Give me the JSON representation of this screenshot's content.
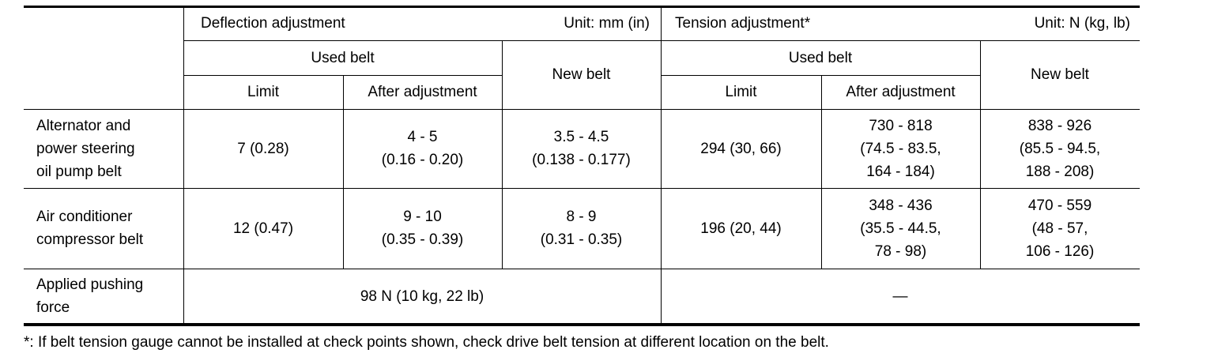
{
  "header": {
    "deflection_title": "Deflection adjustment",
    "deflection_unit": "Unit: mm (in)",
    "tension_title": "Tension adjustment*",
    "tension_unit": "Unit: N (kg, lb)",
    "deflection_used_belt": "Used belt",
    "deflection_new_belt": "New belt",
    "deflection_limit": "Limit",
    "deflection_after_adjustment": "After adjustment",
    "tension_used_belt": "Used belt",
    "tension_new_belt": "New belt",
    "tension_limit": "Limit",
    "tension_after_adjustment": "After adjustment"
  },
  "rows": [
    {
      "label": [
        "Alternator and",
        "power steering",
        "oil pump belt"
      ],
      "values": [
        [
          "7 (0.28)"
        ],
        [
          "4 - 5",
          "(0.16 - 0.20)"
        ],
        [
          "3.5 - 4.5",
          "(0.138 - 0.177)"
        ],
        [
          "294 (30, 66)"
        ],
        [
          "730 - 818",
          "(74.5 - 83.5,",
          "164 - 184)"
        ],
        [
          "838 - 926",
          "(85.5 - 94.5,",
          "188 - 208)"
        ]
      ]
    },
    {
      "label": [
        "Air conditioner",
        "compressor belt"
      ],
      "values": [
        [
          "12 (0.47)"
        ],
        [
          "9 - 10",
          "(0.35 - 0.39)"
        ],
        [
          "8 - 9",
          "(0.31 - 0.35)"
        ],
        [
          "196 (20, 44)"
        ],
        [
          "348 - 436",
          "(35.5 - 44.5,",
          "78 - 98)"
        ],
        [
          "470 - 559",
          "(48 - 57,",
          "106 - 126)"
        ]
      ]
    }
  ],
  "force_row": {
    "label": [
      "Applied pushing",
      "force"
    ],
    "deflection": "98 N (10 kg, 22 lb)",
    "tension": "—"
  },
  "footnote": "*: If belt tension gauge cannot be installed at check points shown, check drive belt tension at different location on the belt."
}
